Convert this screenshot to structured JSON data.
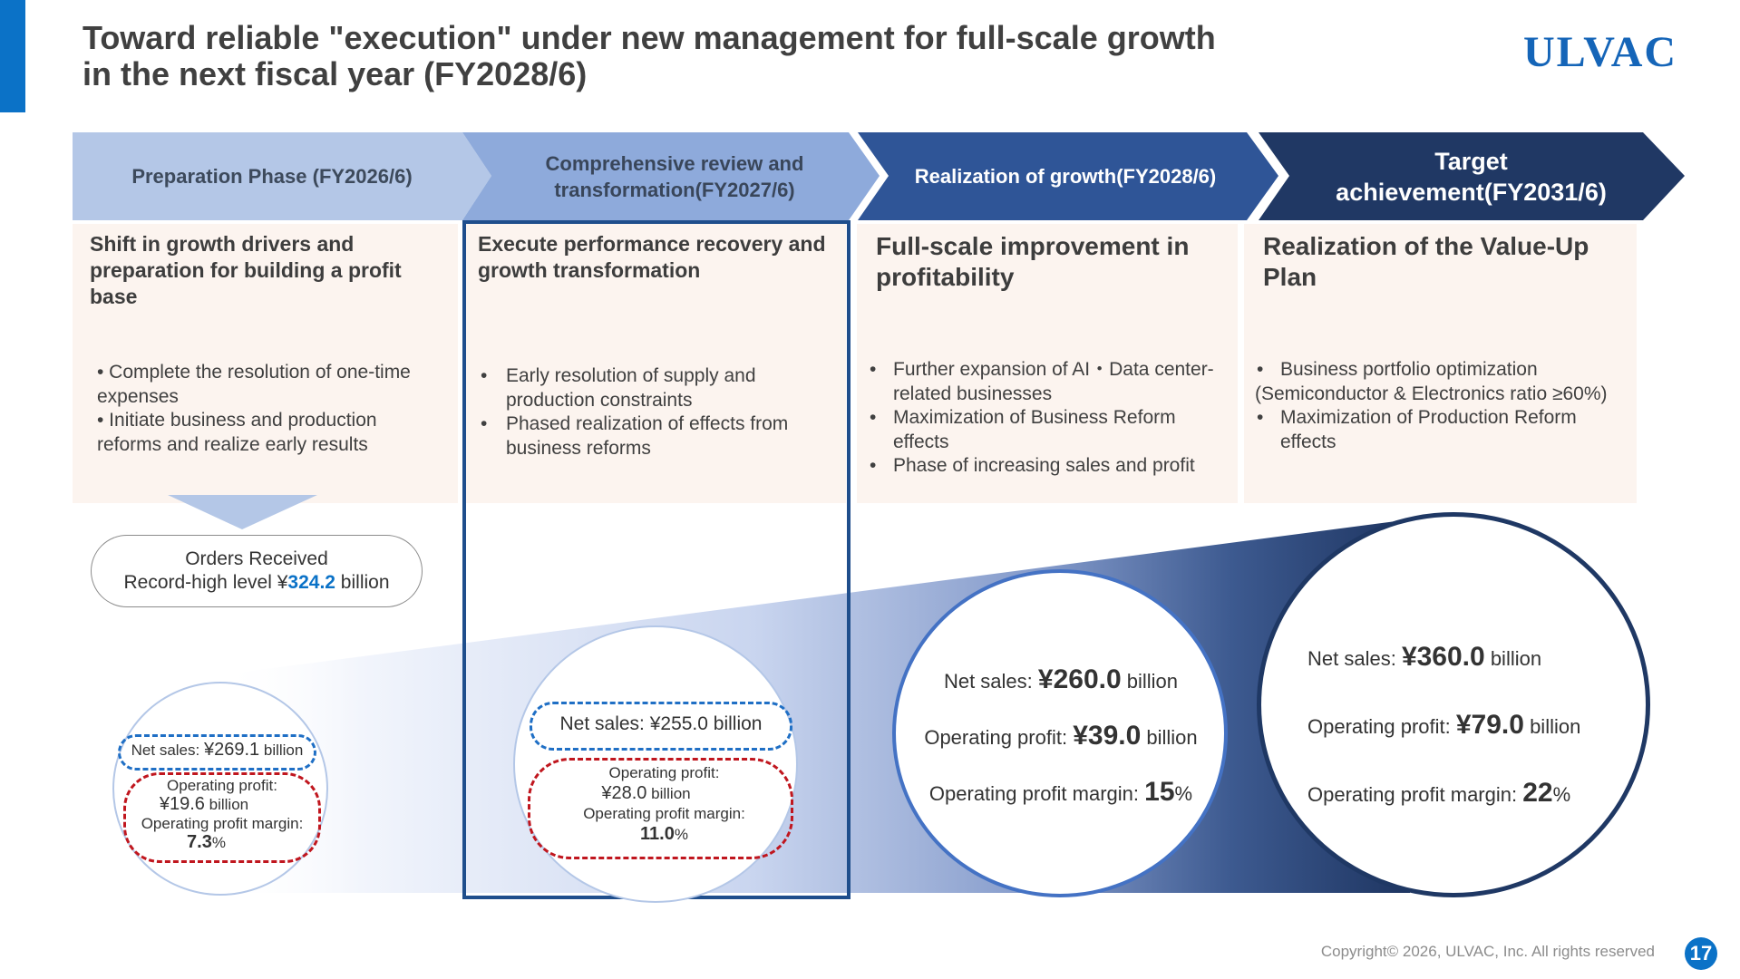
{
  "header": {
    "title": "Toward reliable \"execution\" under new management for full-scale growth\nin the next fiscal year (FY2028/6)",
    "logo_text": "ULVAC"
  },
  "colors": {
    "accent": "#0b72c7",
    "phase1": "#b4c7e7",
    "phase2": "#8eaadb",
    "phase3": "#2f5597",
    "phase4": "#203864",
    "card_bg": "#fcf4ef",
    "highlight_border": "#1f4e8c",
    "dash_blue": "#1f6fc5",
    "dash_red": "#c0161e"
  },
  "phases": [
    {
      "label": "Preparation Phase (FY2026/6)"
    },
    {
      "label": "Comprehensive review and transformation(FY2027/6)"
    },
    {
      "label": "Realization of growth(FY2028/6)"
    },
    {
      "label": "Target achievement(FY2031/6)"
    }
  ],
  "columns": [
    {
      "heading": "Shift in growth drivers and preparation for building a profit base",
      "bullets": [
        "• Complete the resolution of one-time expenses",
        "• Initiate business and production reforms and realize early results"
      ]
    },
    {
      "heading": "Execute performance recovery and growth transformation",
      "bullets": [
        "Early resolution of supply and production constraints",
        "Phased realization of effects from business reforms"
      ]
    },
    {
      "heading": "Full-scale improvement in profitability",
      "bullets": [
        "Further expansion of AI・Data center-related businesses",
        "Maximization of Business Reform effects",
        "Phase of increasing sales and profit"
      ]
    },
    {
      "heading": "Realization of the Value-Up Plan",
      "bullets": [
        "Business portfolio optimization",
        "(Semiconductor & Electronics ratio ≥60%)",
        "Maximization of Production Reform effects"
      ]
    }
  ],
  "orders": {
    "line1": "Orders Received",
    "prefix": "Record-high level ¥",
    "value": "324.2",
    "suffix": " billion"
  },
  "bubbles": [
    {
      "net_label": "Net sales",
      "net_sep": ": ",
      "net_value": "¥269.1",
      "net_unit": " billion",
      "op_label": "Operating profit:",
      "op_value": "¥19.6",
      "op_unit": " billion",
      "margin_label": "Operating profit margin:",
      "margin_value": "7.3",
      "margin_unit": "%"
    },
    {
      "net_text": "Net sales: ¥255.0 billion",
      "op_label": "Operating profit:",
      "op_value": "¥28.0",
      "op_unit": " billion",
      "margin_label": "Operating profit margin:",
      "margin_value": "11.0",
      "margin_unit": "%"
    },
    {
      "net_label": "Net sales: ",
      "net_value": "¥260.0",
      "net_unit": " billion",
      "op_label": "Operating profit: ",
      "op_value": "¥39.0",
      "op_unit": " billion",
      "margin_label": "Operating profit margin: ",
      "margin_value": "15",
      "margin_unit": "%"
    },
    {
      "net_label": "Net sales: ",
      "net_value": "¥360.0",
      "net_unit": " billion",
      "op_label": "Operating profit: ",
      "op_value": "¥79.0",
      "op_unit": "  billion",
      "margin_label": "Operating profit margin: ",
      "margin_value": "22",
      "margin_unit": "%"
    }
  ],
  "footer": {
    "copyright": "Copyright© 2026, ULVAC, Inc. All rights reserved",
    "page_number": "17"
  }
}
